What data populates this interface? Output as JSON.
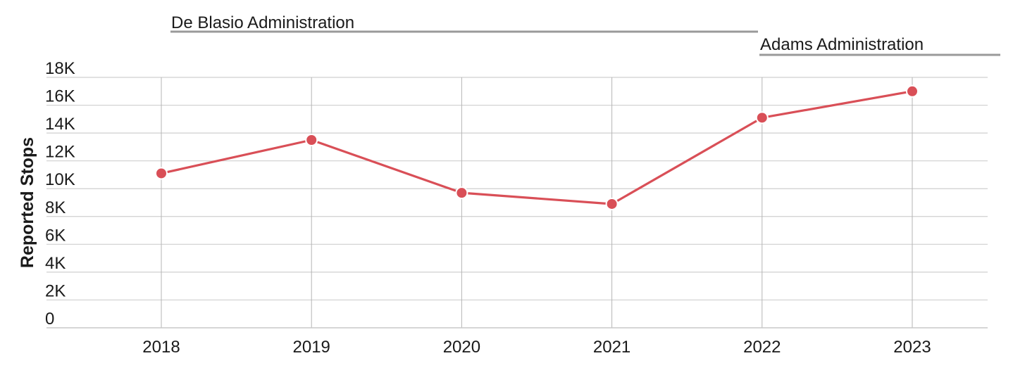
{
  "chart_data": {
    "type": "line",
    "ylabel": "Reported Stops",
    "y_tick_labels": [
      "0",
      "2K",
      "4K",
      "6K",
      "8K",
      "10K",
      "12K",
      "14K",
      "16K",
      "18K"
    ],
    "y_ticks": [
      0,
      2000,
      4000,
      6000,
      8000,
      10000,
      12000,
      14000,
      16000,
      18000
    ],
    "ylim": [
      0,
      18000
    ],
    "x": [
      "2018",
      "2019",
      "2020",
      "2021",
      "2022",
      "2023"
    ],
    "series": [
      {
        "values": [
          11100,
          13500,
          9700,
          8900,
          15100,
          17000
        ],
        "color": "#d94f57"
      }
    ],
    "grid": true,
    "annotations": [
      {
        "label": "De Blasio Administration",
        "from": "2018",
        "to": "2021"
      },
      {
        "label": "Adams Administration",
        "from": "2022",
        "to": "2023"
      }
    ]
  }
}
